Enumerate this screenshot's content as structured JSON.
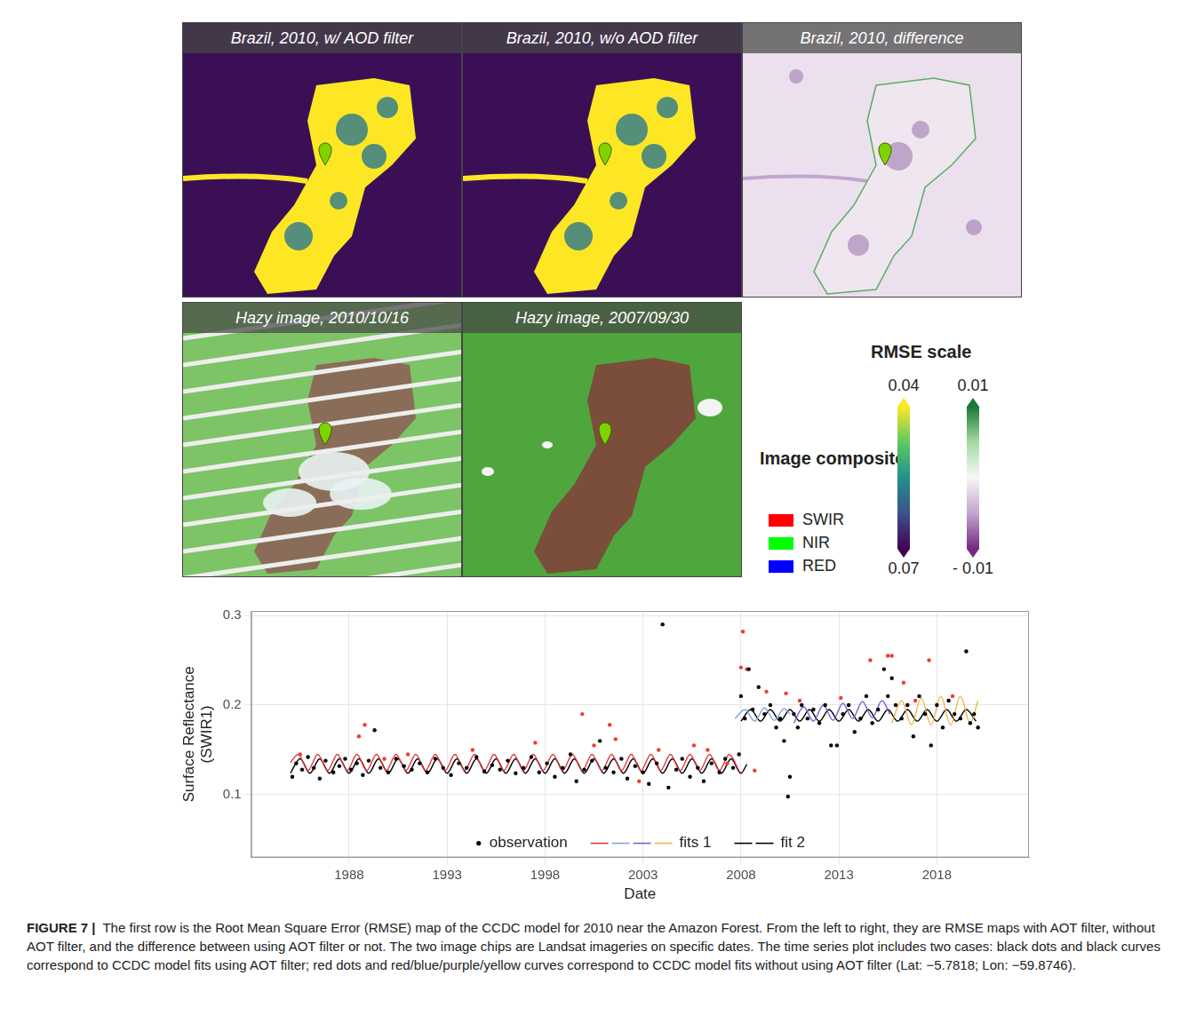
{
  "panels": [
    {
      "title": "Brazil, 2010, w/ AOD filter",
      "kind": "rmse"
    },
    {
      "title": "Brazil, 2010, w/o AOD filter",
      "kind": "rmse"
    },
    {
      "title": "Brazil, 2010, difference",
      "kind": "difference"
    },
    {
      "title": "Hazy image, 2010/10/16",
      "kind": "hazy_striped"
    },
    {
      "title": "Hazy image, 2007/09/30",
      "kind": "clear"
    }
  ],
  "image_composite": {
    "title": "Image composite",
    "items": [
      {
        "label": "SWIR",
        "color": "#ff0000"
      },
      {
        "label": "NIR",
        "color": "#00ff00"
      },
      {
        "label": "RED",
        "color": "#0000ff"
      }
    ]
  },
  "rmse_scale": {
    "title": "RMSE scale",
    "colorbars": [
      {
        "top": 0.04,
        "bottom": 0.07,
        "colors": [
          "#fde725",
          "#5ec962",
          "#21918c",
          "#3b528b",
          "#440154"
        ]
      },
      {
        "top": 0.01,
        "bottom": {
          "value": -0.01,
          "label": "- 0.01"
        },
        "colors": [
          "#1b7837",
          "#a6dba0",
          "#f7f7f7",
          "#c2a5cf",
          "#762a83"
        ]
      }
    ]
  },
  "chart_data": {
    "type": "scatter",
    "x_label": "Date",
    "y_label": "Surface Reflectance (SWIR1)",
    "xlim": [
      1983,
      2022.7
    ],
    "xticks": [
      1988,
      1993,
      1998,
      2003,
      2008,
      2013,
      2018
    ],
    "ylim": [
      0.03,
      0.305
    ],
    "yticks": [
      0.1,
      0.2,
      0.3
    ],
    "grid": true,
    "legend": "bottom",
    "series": [
      {
        "name": "observation",
        "type": "scatter",
        "color": "#000000",
        "x": [
          1985.1,
          1985.3,
          1985.6,
          1985.9,
          1986.2,
          1986.5,
          1986.8,
          1987.2,
          1987.5,
          1987.8,
          1988.1,
          1988.4,
          1988.7,
          1989.0,
          1989.3,
          1989.6,
          1990.0,
          1990.4,
          1990.8,
          1991.2,
          1991.6,
          1992.0,
          1992.4,
          1992.8,
          1993.2,
          1993.6,
          1994.0,
          1994.5,
          1994.9,
          1995.3,
          1995.7,
          1996.1,
          1996.5,
          1996.9,
          1997.3,
          1997.7,
          1998.1,
          1998.5,
          1998.9,
          1999.3,
          1999.6,
          2000.0,
          2000.4,
          2000.8,
          2001.1,
          2001.5,
          2001.9,
          2002.2,
          2002.6,
          2003.0,
          2003.3,
          2003.7,
          2004.0,
          2004.3,
          2004.7,
          2005.0,
          2005.4,
          2005.8,
          2006.1,
          2006.5,
          2006.9,
          2007.2,
          2007.6,
          2007.9,
          2008.0,
          2008.2,
          2008.4,
          2008.6,
          2008.9,
          2009.2,
          2009.5,
          2009.8,
          2010.0,
          2010.2,
          2010.4,
          2010.5,
          2010.7,
          2010.9,
          2011.1,
          2011.4,
          2011.7,
          2012.0,
          2012.3,
          2012.6,
          2012.9,
          2013.2,
          2013.5,
          2013.8,
          2014.1,
          2014.4,
          2014.7,
          2015.0,
          2015.3,
          2015.5,
          2015.7,
          2015.9,
          2016.2,
          2016.5,
          2016.8,
          2017.1,
          2017.4,
          2017.7,
          2018.0,
          2018.3,
          2018.6,
          2018.9,
          2019.2,
          2019.5,
          2019.7,
          2019.9,
          2020.1
        ],
        "values": [
          0.12,
          0.135,
          0.128,
          0.142,
          0.13,
          0.118,
          0.138,
          0.125,
          0.132,
          0.14,
          0.128,
          0.135,
          0.122,
          0.138,
          0.172,
          0.13,
          0.125,
          0.14,
          0.132,
          0.128,
          0.135,
          0.125,
          0.14,
          0.13,
          0.122,
          0.135,
          0.13,
          0.142,
          0.126,
          0.133,
          0.128,
          0.138,
          0.124,
          0.13,
          0.142,
          0.125,
          0.135,
          0.12,
          0.13,
          0.145,
          0.115,
          0.128,
          0.138,
          0.16,
          0.13,
          0.125,
          0.14,
          0.118,
          0.132,
          0.125,
          0.112,
          0.135,
          0.29,
          0.108,
          0.128,
          0.14,
          0.12,
          0.13,
          0.115,
          0.135,
          0.125,
          0.14,
          0.13,
          0.145,
          0.21,
          0.185,
          0.24,
          0.195,
          0.22,
          0.19,
          0.2,
          0.175,
          0.185,
          0.16,
          0.098,
          0.12,
          0.19,
          0.175,
          0.2,
          0.185,
          0.195,
          0.18,
          0.2,
          0.155,
          0.155,
          0.19,
          0.2,
          0.17,
          0.185,
          0.21,
          0.18,
          0.195,
          0.24,
          0.21,
          0.23,
          0.2,
          0.185,
          0.2,
          0.165,
          0.21,
          0.19,
          0.155,
          0.2,
          0.175,
          0.205,
          0.19,
          0.185,
          0.26,
          0.18,
          0.19,
          0.175
        ]
      },
      {
        "name": "observation",
        "type": "scatter",
        "color": "#f03c32",
        "x": [
          1985.5,
          1988.5,
          1988.8,
          1989.8,
          1991.0,
          1994.3,
          1997.5,
          1999.9,
          2000.5,
          2001.3,
          2001.6,
          2002.8,
          2003.8,
          2005.6,
          2006.3,
          2007.3,
          2008.0,
          2008.1,
          2008.3,
          2008.7,
          2009.3,
          2010.3,
          2011.0,
          2013.1,
          2014.6,
          2015.5,
          2015.7,
          2016.3,
          2016.9,
          2017.6,
          2018.8
        ],
        "values": [
          0.145,
          0.165,
          0.178,
          0.14,
          0.145,
          0.15,
          0.158,
          0.19,
          0.155,
          0.178,
          0.162,
          0.115,
          0.15,
          0.155,
          0.15,
          0.135,
          0.242,
          0.282,
          0.24,
          0.127,
          0.215,
          0.213,
          0.205,
          0.208,
          0.25,
          0.255,
          0.255,
          0.225,
          0.205,
          0.25,
          0.21
        ]
      },
      {
        "name": "fits 1",
        "type": "line",
        "color": "#e03a3a",
        "x": [
          1985.0,
          1985.4,
          1985.9,
          1986.4,
          1986.9,
          1987.4,
          1987.9,
          1988.4,
          1988.9,
          1989.4,
          1989.9,
          1990.4,
          1990.9,
          1991.4,
          1991.9,
          1992.4,
          1992.9,
          1993.4,
          1993.9,
          1994.4,
          1994.9,
          1995.4,
          1995.9,
          1996.4,
          1996.9,
          1997.4,
          1997.9,
          1998.4,
          1998.9,
          1999.4,
          1999.9,
          2000.4,
          2000.9,
          2001.4,
          2001.9,
          2002.4,
          2002.9,
          2003.4,
          2003.9,
          2004.4,
          2004.9,
          2005.4,
          2005.9,
          2006.4,
          2006.9,
          2007.4,
          2007.9
        ],
        "values": [
          0.136,
          0.145,
          0.127,
          0.145,
          0.127,
          0.145,
          0.127,
          0.145,
          0.127,
          0.145,
          0.127,
          0.145,
          0.127,
          0.145,
          0.127,
          0.145,
          0.127,
          0.145,
          0.127,
          0.145,
          0.127,
          0.145,
          0.127,
          0.145,
          0.127,
          0.145,
          0.127,
          0.145,
          0.127,
          0.145,
          0.127,
          0.145,
          0.127,
          0.145,
          0.127,
          0.145,
          0.127,
          0.145,
          0.127,
          0.145,
          0.127,
          0.145,
          0.127,
          0.145,
          0.127,
          0.145,
          0.127
        ]
      },
      {
        "name": "fits 1",
        "type": "line",
        "color": "#7fa7d9",
        "x": [
          2007.7,
          2008.2,
          2008.7,
          2009.2,
          2009.7,
          2010.2,
          2010.5
        ],
        "values": [
          0.185,
          0.195,
          0.182,
          0.197,
          0.183,
          0.196,
          0.19
        ]
      },
      {
        "name": "fits 1",
        "type": "line",
        "color": "#7b5fd1",
        "x": [
          2010.7,
          2011.2,
          2011.7,
          2012.2,
          2012.7,
          2013.2,
          2013.7,
          2014.2,
          2014.7,
          2015.2,
          2015.6
        ],
        "values": [
          0.18,
          0.198,
          0.182,
          0.2,
          0.183,
          0.202,
          0.185,
          0.204,
          0.186,
          0.205,
          0.19
        ]
      },
      {
        "name": "fits 1",
        "type": "line",
        "color": "#f0b64d",
        "x": [
          2015.7,
          2016.2,
          2016.7,
          2017.2,
          2017.7,
          2018.2,
          2018.7,
          2019.2,
          2019.7,
          2020.1
        ],
        "values": [
          0.18,
          0.205,
          0.178,
          0.208,
          0.178,
          0.21,
          0.178,
          0.21,
          0.18,
          0.205
        ]
      },
      {
        "name": "fit 2",
        "type": "line",
        "color": "#000000",
        "x": [
          1985.0,
          1985.5,
          1986.0,
          1986.5,
          1987.0,
          1987.5,
          1988.0,
          1988.5,
          1989.0,
          1989.5,
          1990.0,
          1990.5,
          1991.0,
          1991.5,
          1992.0,
          1992.5,
          1993.0,
          1993.5,
          1994.0,
          1994.5,
          1995.0,
          1995.5,
          1996.0,
          1996.5,
          1997.0,
          1997.5,
          1998.0,
          1998.5,
          1999.0,
          1999.5,
          2000.0,
          2000.5,
          2001.0,
          2001.5,
          2002.0,
          2002.5,
          2003.0,
          2003.5,
          2004.0,
          2004.5,
          2005.0,
          2005.5,
          2006.0,
          2006.5,
          2007.0,
          2007.5,
          2008.0,
          2008.3
        ],
        "values": [
          0.124,
          0.14,
          0.124,
          0.14,
          0.124,
          0.14,
          0.124,
          0.14,
          0.124,
          0.14,
          0.124,
          0.14,
          0.124,
          0.14,
          0.124,
          0.14,
          0.124,
          0.14,
          0.124,
          0.14,
          0.124,
          0.14,
          0.124,
          0.14,
          0.124,
          0.14,
          0.124,
          0.14,
          0.124,
          0.14,
          0.124,
          0.14,
          0.124,
          0.14,
          0.124,
          0.14,
          0.124,
          0.14,
          0.124,
          0.14,
          0.124,
          0.14,
          0.124,
          0.14,
          0.124,
          0.14,
          0.124,
          0.134
        ]
      },
      {
        "name": "fit 2",
        "type": "line",
        "color": "#000000",
        "x": [
          2008.0,
          2008.5,
          2009.0,
          2009.5,
          2010.0,
          2010.5,
          2011.0,
          2011.5,
          2012.0,
          2012.5,
          2013.0,
          2013.5,
          2014.0,
          2014.5,
          2015.0,
          2015.5,
          2016.0,
          2016.5,
          2017.0,
          2017.5,
          2018.0,
          2018.5,
          2019.0,
          2019.5,
          2020.0
        ],
        "values": [
          0.182,
          0.195,
          0.182,
          0.195,
          0.182,
          0.195,
          0.182,
          0.195,
          0.182,
          0.195,
          0.182,
          0.195,
          0.182,
          0.195,
          0.182,
          0.195,
          0.182,
          0.195,
          0.182,
          0.195,
          0.182,
          0.195,
          0.182,
          0.195,
          0.182
        ]
      }
    ]
  },
  "caption": {
    "label": "FIGURE 7 |",
    "text": "The first row is the Root Mean Square Error (RMSE) map of the CCDC model for 2010 near the Amazon Forest. From the left to right, they are RMSE maps with AOT filter, without AOT filter, and the difference between using AOT filter or not. The two image chips are Landsat imageries on specific dates. The time series plot includes two cases: black dots and black curves correspond to CCDC model fits using AOT filter; red dots and red/blue/purple/yellow curves correspond to CCDC model fits without using AOT filter (Lat: −5.7818; Lon: −59.8746)."
  }
}
